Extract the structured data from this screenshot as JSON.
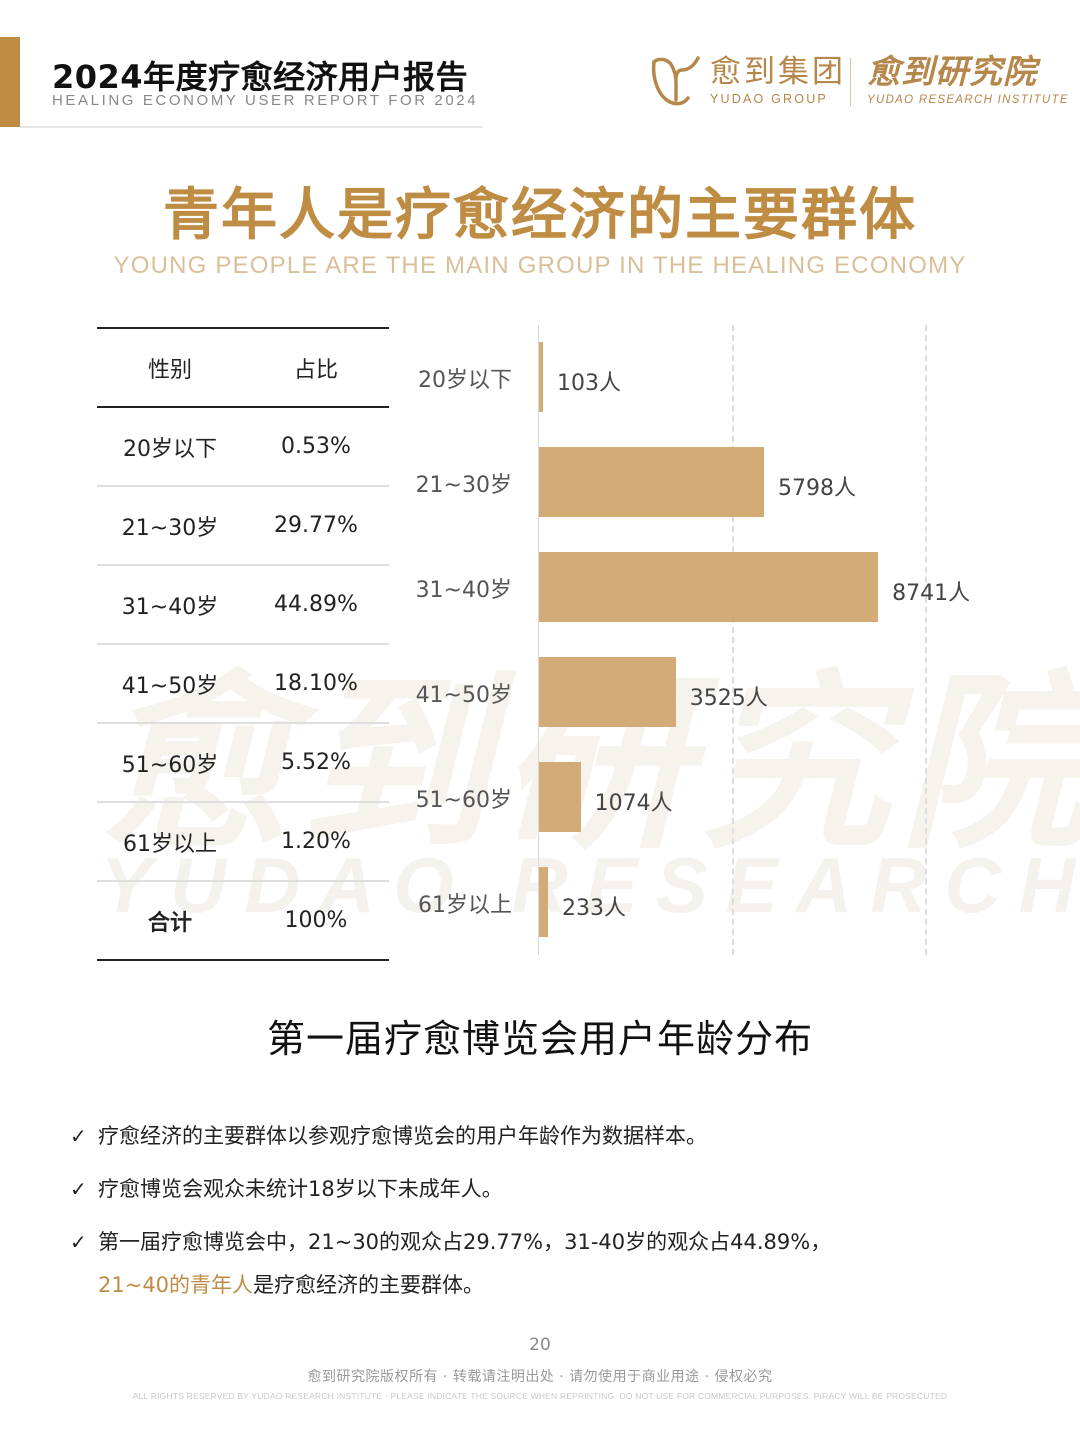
{
  "header": {
    "report_title": "2024年度疗愈经济用户报告",
    "report_subtitle": "HEALING ECONOMY USER REPORT FOR 2024",
    "group_logo_cn": "愈到集团",
    "group_logo_en": "YUDAO GROUP",
    "institute_cn": "愈到研究院",
    "institute_en": "YUDAO RESEARCH INSTITUTE",
    "accent_color": "#bf8c44"
  },
  "page": {
    "title": "青年人是疗愈经济的主要群体",
    "subtitle": "YOUNG PEOPLE ARE THE MAIN GROUP IN THE HEALING ECONOMY",
    "watermark_cn": "愈到研究院",
    "watermark_en": "YUDAO RESEARCH INSTITUTE"
  },
  "table": {
    "headers": [
      "性别",
      "占比"
    ],
    "rows": [
      {
        "age": "20岁以下",
        "pct": "0.53%"
      },
      {
        "age": "21~30岁",
        "pct": "29.77%"
      },
      {
        "age": "31~40岁",
        "pct": "44.89%"
      },
      {
        "age": "41~50岁",
        "pct": "18.10%"
      },
      {
        "age": "51~60岁",
        "pct": "5.52%"
      },
      {
        "age": "61岁以上",
        "pct": "1.20%"
      }
    ],
    "total": {
      "label": "合计",
      "pct": "100%"
    }
  },
  "chart_data": {
    "type": "bar",
    "orientation": "horizontal",
    "title": "第一届疗愈博览会用户年龄分布",
    "categories": [
      "20岁以下",
      "21~30岁",
      "31~40岁",
      "41~50岁",
      "51~60岁",
      "61岁以上"
    ],
    "values": [
      103,
      5798,
      8741,
      3525,
      1074,
      233
    ],
    "value_labels": [
      "103人",
      "5798人",
      "8741人",
      "3525人",
      "1074人",
      "233人"
    ],
    "unit": "人",
    "xlabel": "",
    "ylabel": "",
    "xlim": [
      0,
      10000
    ],
    "gridlines": [
      5000,
      10000
    ],
    "grid": "dashed vertical",
    "legend": "none",
    "bar_color": "#d3ab76"
  },
  "caption": "第一届疗愈博览会用户年龄分布",
  "notes": [
    {
      "text": "疗愈经济的主要群体以参观疗愈博览会的用户年龄作为数据样本。"
    },
    {
      "text": "疗愈博览会观众未统计18岁以下未成年人。"
    },
    {
      "text": "第一届疗愈博览会中，21~30的观众占29.77%，31-40岁的观众占44.89%，",
      "highlight": "21~40的青年人",
      "tail": "是疗愈经济的主要群体。"
    }
  ],
  "check_glyph": "✓",
  "footer": {
    "page_number": "20",
    "copyright_cn": "愈到研究院版权所有 · 转载请注明出处 · 请勿使用于商业用途 · 侵权必究",
    "copyright_en": "ALL RIGHTS RESERVED BY YUDAO RESEARCH INSTITUTE · PLEASE INDICATE THE SOURCE WHEN REPRINTING. DO NOT USE FOR COMMERCIAL PURPOSES. PIRACY WILL BE PROSECUTED"
  }
}
